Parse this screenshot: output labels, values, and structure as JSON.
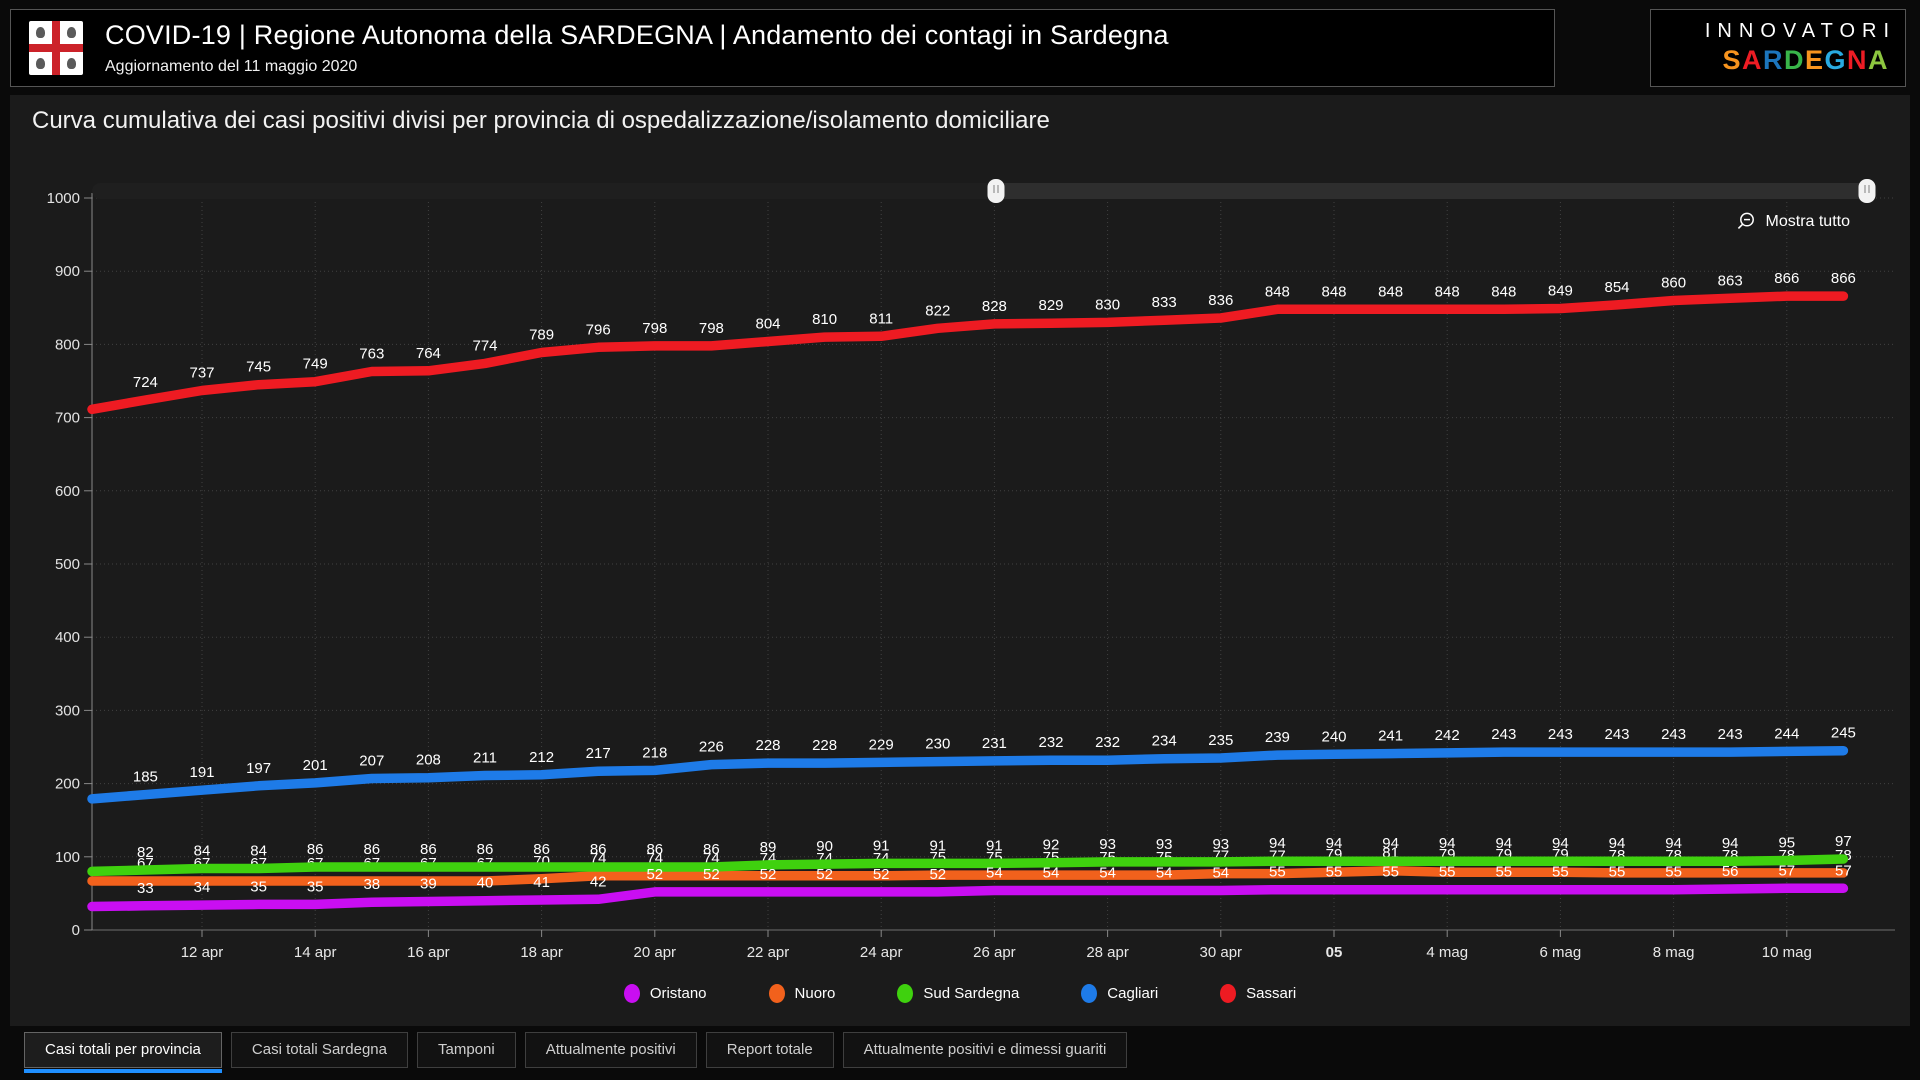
{
  "header": {
    "title": "COVID-19 | Regione Autonoma della SARDEGNA | Andamento dei contagi in Sardegna",
    "subtitle": "Aggiornamento del 11 maggio 2020",
    "brand_top": "INNOVATORI",
    "brand_letters": [
      {
        "ch": "S",
        "color": "#f7941e"
      },
      {
        "ch": "A",
        "color": "#ed1c24"
      },
      {
        "ch": "R",
        "color": "#1c75bc"
      },
      {
        "ch": "D",
        "color": "#39b54a"
      },
      {
        "ch": "E",
        "color": "#f7941e"
      },
      {
        "ch": "G",
        "color": "#29abe2"
      },
      {
        "ch": "N",
        "color": "#ed1c24"
      },
      {
        "ch": "A",
        "color": "#8dc63f"
      }
    ]
  },
  "chart": {
    "title": "Curva cumulativa dei casi positivi divisi per provincia di ospedalizzazione/isolamento domiciliare",
    "show_all": "Mostra tutto"
  },
  "chart_data": {
    "type": "line",
    "title": "Curva cumulativa dei casi positivi divisi per provincia di ospedalizzazione/isolamento domiciliare",
    "x_dates": [
      "11 apr",
      "12 apr",
      "13 apr",
      "14 apr",
      "15 apr",
      "16 apr",
      "17 apr",
      "18 apr",
      "19 apr",
      "20 apr",
      "21 apr",
      "22 apr",
      "23 apr",
      "24 apr",
      "25 apr",
      "26 apr",
      "27 apr",
      "28 apr",
      "29 apr",
      "30 apr",
      "1 mag",
      "2 mag",
      "3 mag",
      "4 mag",
      "5 mag",
      "6 mag",
      "7 mag",
      "8 mag",
      "9 mag",
      "10 mag",
      "11 mag"
    ],
    "x_tick_labels": [
      {
        "index": 1,
        "label": "12 apr"
      },
      {
        "index": 3,
        "label": "14 apr"
      },
      {
        "index": 5,
        "label": "16 apr"
      },
      {
        "index": 7,
        "label": "18 apr"
      },
      {
        "index": 9,
        "label": "20 apr"
      },
      {
        "index": 11,
        "label": "22 apr"
      },
      {
        "index": 13,
        "label": "24 apr"
      },
      {
        "index": 15,
        "label": "26 apr"
      },
      {
        "index": 17,
        "label": "28 apr"
      },
      {
        "index": 19,
        "label": "30 apr"
      },
      {
        "index": 21,
        "label": "05",
        "bold": true
      },
      {
        "index": 23,
        "label": "4 mag"
      },
      {
        "index": 25,
        "label": "6 mag"
      },
      {
        "index": 27,
        "label": "8 mag"
      },
      {
        "index": 29,
        "label": "10 mag"
      }
    ],
    "y_axis": {
      "min": 0,
      "max": 1000,
      "step": 100
    },
    "grid": true,
    "legend_position": "bottom",
    "series": [
      {
        "name": "Sassari",
        "color": "#ee1b22",
        "values": [
          724,
          737,
          745,
          749,
          763,
          764,
          774,
          789,
          796,
          798,
          798,
          804,
          810,
          811,
          822,
          828,
          829,
          830,
          833,
          836,
          848,
          848,
          848,
          848,
          848,
          849,
          854,
          860,
          863,
          866,
          866
        ]
      },
      {
        "name": "Cagliari",
        "color": "#1e7be8",
        "values": [
          185,
          191,
          197,
          201,
          207,
          208,
          211,
          212,
          217,
          218,
          226,
          228,
          228,
          229,
          230,
          231,
          232,
          232,
          234,
          235,
          239,
          240,
          241,
          242,
          243,
          243,
          243,
          243,
          243,
          244,
          245
        ]
      },
      {
        "name": "Nuoro",
        "color": "#f2611c",
        "values": [
          67,
          67,
          67,
          67,
          67,
          67,
          67,
          70,
          74,
          74,
          74,
          74,
          74,
          74,
          75,
          75,
          75,
          75,
          75,
          77,
          77,
          79,
          81,
          79,
          79,
          79,
          78,
          78,
          78,
          78,
          78
        ]
      },
      {
        "name": "Sud Sardegna",
        "color": "#3fd10e",
        "values": [
          82,
          84,
          84,
          86,
          86,
          86,
          86,
          86,
          86,
          86,
          86,
          89,
          90,
          91,
          91,
          91,
          92,
          93,
          93,
          93,
          94,
          94,
          94,
          94,
          94,
          94,
          94,
          94,
          94,
          95,
          97
        ]
      },
      {
        "name": "Oristano",
        "color": "#c90ef2",
        "values": [
          33,
          34,
          35,
          35,
          38,
          39,
          40,
          41,
          42,
          52,
          52,
          52,
          52,
          52,
          52,
          54,
          54,
          54,
          54,
          54,
          55,
          55,
          55,
          55,
          55,
          55,
          55,
          55,
          56,
          57,
          57
        ]
      }
    ],
    "legend_order": [
      "Oristano",
      "Nuoro",
      "Sud Sardegna",
      "Cagliari",
      "Sassari"
    ]
  },
  "tabs": [
    {
      "label": "Casi totali per provincia",
      "active": true
    },
    {
      "label": "Casi totali Sardegna",
      "active": false
    },
    {
      "label": "Tamponi",
      "active": false
    },
    {
      "label": "Attualmente positivi",
      "active": false
    },
    {
      "label": "Report totale",
      "active": false
    },
    {
      "label": "Attualmente positivi e dimessi guariti",
      "active": false
    }
  ]
}
